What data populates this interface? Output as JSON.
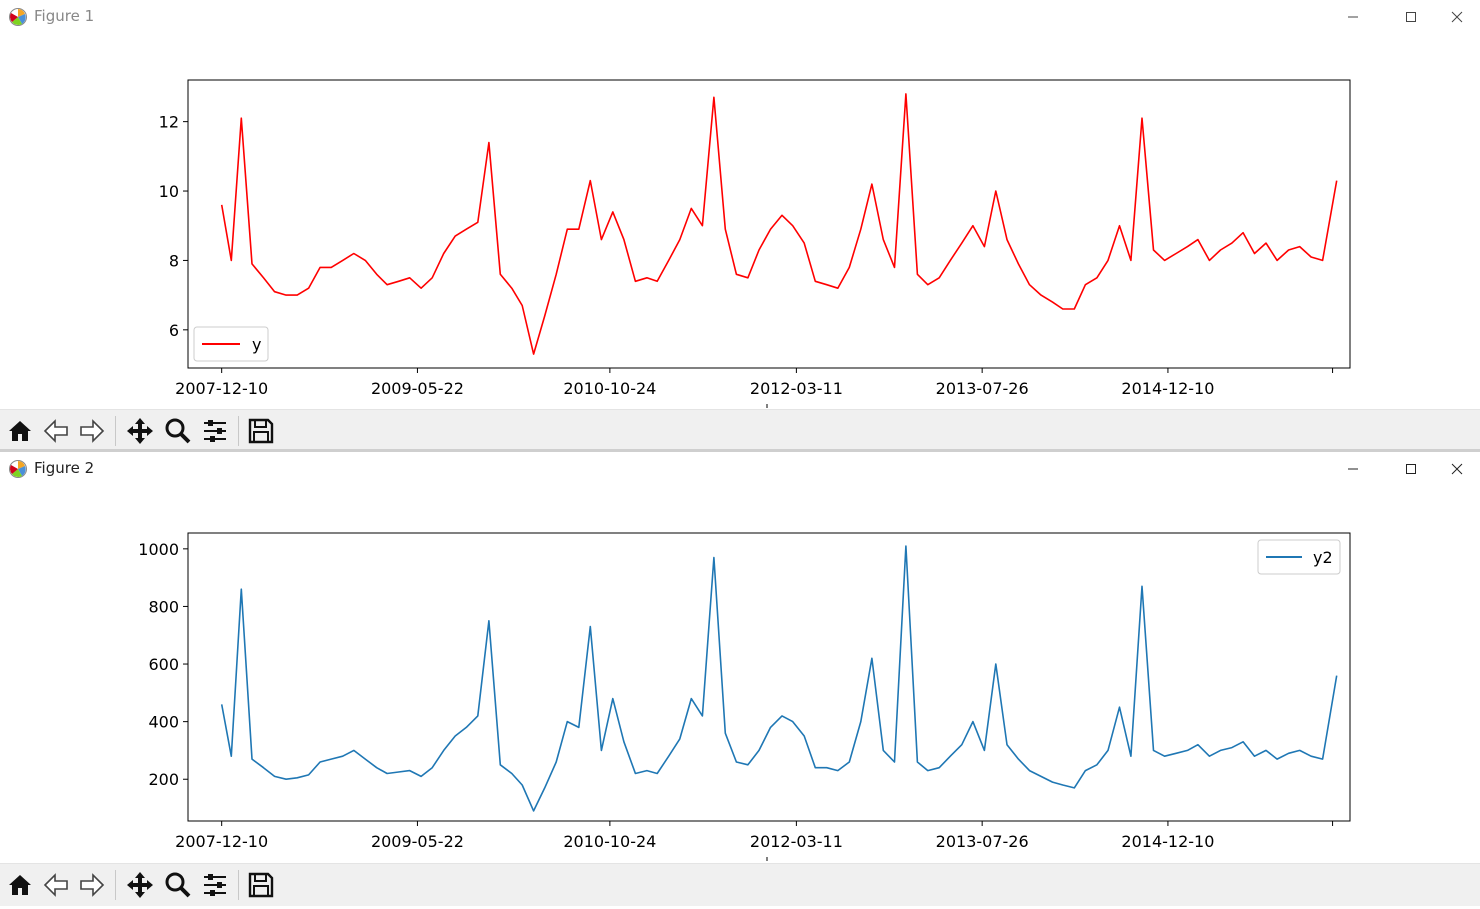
{
  "windows": [
    {
      "title": "Figure 1"
    },
    {
      "title": "Figure 2"
    }
  ],
  "window_controls": [
    "minimize-icon",
    "maximize-icon",
    "close-icon"
  ],
  "toolbar_icons": [
    "home-icon",
    "back-arrow-icon",
    "forward-arrow-icon",
    "pan-icon",
    "zoom-icon",
    "configure-subplots-icon",
    "save-icon"
  ],
  "chart_data": [
    {
      "type": "line",
      "x_ticks": [
        "2007-12-10",
        "2009-05-22",
        "2010-10-24",
        "2012-03-11",
        "2013-07-26",
        "2014-12-10"
      ],
      "xlim": [
        "2007-09-10",
        "2016-04-15"
      ],
      "y_ticks": [
        "6",
        "8",
        "10",
        "12"
      ],
      "ylim": [
        4.9,
        13.2
      ],
      "legend_position": "lower-left",
      "grid": false,
      "series": [
        {
          "name": "y",
          "color": "#ff0000",
          "x": [
            "2007-12-10",
            "2008-01-05",
            "2008-02-01",
            "2008-03-01",
            "2008-04-01",
            "2008-05-01",
            "2008-06-01",
            "2008-07-01",
            "2008-08-01",
            "2008-09-01",
            "2008-10-01",
            "2008-11-01",
            "2008-12-01",
            "2009-01-01",
            "2009-02-01",
            "2009-03-01",
            "2009-04-01",
            "2009-05-01",
            "2009-06-01",
            "2009-07-01",
            "2009-08-01",
            "2009-09-01",
            "2009-10-01",
            "2009-11-01",
            "2009-12-01",
            "2010-01-01",
            "2010-02-01",
            "2010-03-01",
            "2010-04-01",
            "2010-05-01",
            "2010-06-01",
            "2010-07-01",
            "2010-08-01",
            "2010-09-01",
            "2010-10-01",
            "2010-11-01",
            "2010-12-01",
            "2011-01-01",
            "2011-02-01",
            "2011-03-01",
            "2011-04-01",
            "2011-05-01",
            "2011-06-01",
            "2011-07-01",
            "2011-08-01",
            "2011-09-01",
            "2011-10-01",
            "2011-11-01",
            "2011-12-01",
            "2012-01-01",
            "2012-02-01",
            "2012-03-01",
            "2012-04-01",
            "2012-05-01",
            "2012-06-01",
            "2012-07-01",
            "2012-08-01",
            "2012-09-01",
            "2012-10-01",
            "2012-11-01",
            "2012-12-01",
            "2013-01-01",
            "2013-02-01",
            "2013-03-01",
            "2013-04-01",
            "2013-05-01",
            "2013-06-01",
            "2013-07-01",
            "2013-08-01",
            "2013-09-01",
            "2013-10-01",
            "2013-11-01",
            "2013-12-01",
            "2014-01-01",
            "2014-02-01",
            "2014-03-01",
            "2014-04-01",
            "2014-05-01",
            "2014-06-01",
            "2014-07-01",
            "2014-08-01",
            "2014-09-01",
            "2014-10-01",
            "2014-11-01",
            "2014-12-01",
            "2015-01-01",
            "2015-02-01",
            "2015-03-01",
            "2015-04-01",
            "2015-05-01",
            "2015-06-01",
            "2015-07-01",
            "2015-08-01",
            "2015-09-01",
            "2015-10-01",
            "2015-11-01",
            "2015-12-01",
            "2016-01-01",
            "2016-02-01",
            "2016-03-10"
          ],
          "y": [
            9.6,
            8.0,
            12.1,
            7.9,
            7.5,
            7.1,
            7.0,
            7.0,
            7.2,
            7.8,
            7.8,
            8.0,
            8.2,
            8.0,
            7.6,
            7.3,
            7.4,
            7.5,
            7.2,
            7.5,
            8.2,
            8.7,
            8.9,
            9.1,
            11.4,
            7.6,
            7.2,
            6.7,
            5.3,
            6.4,
            7.6,
            8.9,
            8.9,
            10.3,
            8.6,
            9.4,
            8.6,
            7.4,
            7.5,
            7.4,
            8.0,
            8.6,
            9.5,
            9.0,
            12.7,
            8.9,
            7.6,
            7.5,
            8.3,
            8.9,
            9.3,
            9.0,
            8.5,
            7.4,
            7.3,
            7.2,
            7.8,
            8.9,
            10.2,
            8.6,
            7.8,
            12.8,
            7.6,
            7.3,
            7.5,
            8.0,
            8.5,
            9.0,
            8.4,
            10.0,
            8.6,
            7.9,
            7.3,
            7.0,
            6.8,
            6.6,
            6.6,
            7.3,
            7.5,
            8.0,
            9.0,
            8.0,
            12.1,
            8.3,
            8.0,
            8.2,
            8.4,
            8.6,
            8.0,
            8.3,
            8.5,
            8.8,
            8.2,
            8.5,
            8.0,
            8.3,
            8.4,
            8.1,
            8.0,
            10.3
          ]
        }
      ]
    },
    {
      "type": "line",
      "x_ticks": [
        "2007-12-10",
        "2009-05-22",
        "2010-10-24",
        "2012-03-11",
        "2013-07-26",
        "2014-12-10"
      ],
      "xlim": [
        "2007-09-10",
        "2016-04-15"
      ],
      "y_ticks": [
        "200",
        "400",
        "600",
        "800",
        "1000"
      ],
      "ylim": [
        55,
        1055
      ],
      "legend_position": "upper-right",
      "grid": false,
      "series": [
        {
          "name": "y2",
          "color": "#1f77b4",
          "x": [
            "2007-12-10",
            "2008-01-05",
            "2008-02-01",
            "2008-03-01",
            "2008-04-01",
            "2008-05-01",
            "2008-06-01",
            "2008-07-01",
            "2008-08-01",
            "2008-09-01",
            "2008-10-01",
            "2008-11-01",
            "2008-12-01",
            "2009-01-01",
            "2009-02-01",
            "2009-03-01",
            "2009-04-01",
            "2009-05-01",
            "2009-06-01",
            "2009-07-01",
            "2009-08-01",
            "2009-09-01",
            "2009-10-01",
            "2009-11-01",
            "2009-12-01",
            "2010-01-01",
            "2010-02-01",
            "2010-03-01",
            "2010-04-01",
            "2010-05-01",
            "2010-06-01",
            "2010-07-01",
            "2010-08-01",
            "2010-09-01",
            "2010-10-01",
            "2010-11-01",
            "2010-12-01",
            "2011-01-01",
            "2011-02-01",
            "2011-03-01",
            "2011-04-01",
            "2011-05-01",
            "2011-06-01",
            "2011-07-01",
            "2011-08-01",
            "2011-09-01",
            "2011-10-01",
            "2011-11-01",
            "2011-12-01",
            "2012-01-01",
            "2012-02-01",
            "2012-03-01",
            "2012-04-01",
            "2012-05-01",
            "2012-06-01",
            "2012-07-01",
            "2012-08-01",
            "2012-09-01",
            "2012-10-01",
            "2012-11-01",
            "2012-12-01",
            "2013-01-01",
            "2013-02-01",
            "2013-03-01",
            "2013-04-01",
            "2013-05-01",
            "2013-06-01",
            "2013-07-01",
            "2013-08-01",
            "2013-09-01",
            "2013-10-01",
            "2013-11-01",
            "2013-12-01",
            "2014-01-01",
            "2014-02-01",
            "2014-03-01",
            "2014-04-01",
            "2014-05-01",
            "2014-06-01",
            "2014-07-01",
            "2014-08-01",
            "2014-09-01",
            "2014-10-01",
            "2014-11-01",
            "2014-12-01",
            "2015-01-01",
            "2015-02-01",
            "2015-03-01",
            "2015-04-01",
            "2015-05-01",
            "2015-06-01",
            "2015-07-01",
            "2015-08-01",
            "2015-09-01",
            "2015-10-01",
            "2015-11-01",
            "2015-12-01",
            "2016-01-01",
            "2016-02-01",
            "2016-03-10"
          ],
          "y": [
            460,
            280,
            860,
            270,
            240,
            210,
            200,
            205,
            215,
            260,
            270,
            280,
            300,
            270,
            240,
            220,
            225,
            230,
            210,
            240,
            300,
            350,
            380,
            420,
            750,
            250,
            220,
            180,
            90,
            170,
            260,
            400,
            380,
            730,
            300,
            480,
            330,
            220,
            230,
            220,
            280,
            340,
            480,
            420,
            970,
            360,
            260,
            250,
            300,
            380,
            420,
            400,
            350,
            240,
            240,
            230,
            260,
            400,
            620,
            300,
            260,
            1010,
            260,
            230,
            240,
            280,
            320,
            400,
            300,
            600,
            320,
            270,
            230,
            210,
            190,
            180,
            170,
            230,
            250,
            300,
            450,
            280,
            870,
            300,
            280,
            290,
            300,
            320,
            280,
            300,
            310,
            330,
            280,
            300,
            270,
            290,
            300,
            280,
            270,
            560
          ]
        }
      ]
    }
  ]
}
